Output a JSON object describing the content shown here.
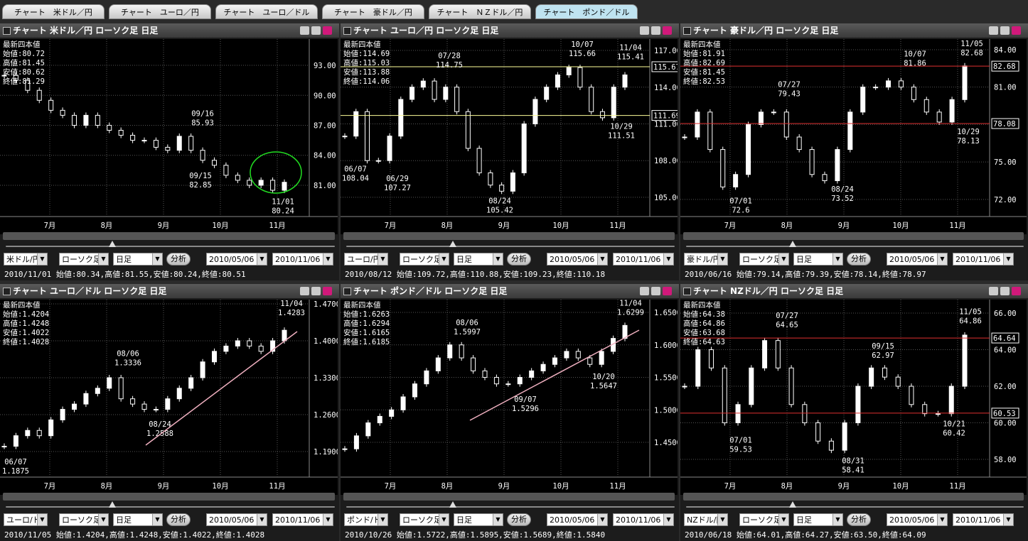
{
  "tabs": [
    "チャート　米ドル／円",
    "チャート　ユーロ／円",
    "チャート　ユーロ／ドル",
    "チャート　豪ドル／円",
    "チャート　ＮＺドル／円",
    "チャート　ポンド／ドル"
  ],
  "panels": [
    {
      "title": "チャート 米ドル／円 ローソク足 日足",
      "info_heading": "最新四本値",
      "info": [
        "始値:80.72",
        "高値:81.45",
        "安値:80.62",
        "終値:81.29"
      ],
      "ylim": [
        77.87,
        95.63
      ],
      "yticks": [
        {
          "value": 93,
          "label": "93.00"
        },
        {
          "value": 90,
          "label": "90.00"
        },
        {
          "value": 87,
          "label": "87.00"
        },
        {
          "value": 84,
          "label": "84.00"
        },
        {
          "value": 81,
          "label": "81.00"
        }
      ],
      "hlines": [],
      "hline_color": "#ffff99",
      "annotations": [
        {
          "date": "09/16",
          "value": 85.93
        },
        {
          "date": "09/15",
          "value": 82.85
        },
        {
          "date": "11/01",
          "value": 80.24
        }
      ],
      "months": [
        "7月",
        "8月",
        "9月",
        "10月",
        "11月"
      ],
      "prices": [
        92.0,
        91.5,
        90.5,
        89.5,
        88.5,
        88.0,
        87.0,
        88.0,
        87.0,
        86.5,
        86.0,
        85.5,
        85.5,
        84.8,
        84.5,
        85.9,
        84.5,
        83.5,
        83.0,
        82.0,
        81.5,
        81.0,
        81.5,
        80.5,
        81.3
      ],
      "controls": {
        "pair": "米ドル/円",
        "type": "ローソク足",
        "period": "日足",
        "button": "分析",
        "from": "2010/05/06",
        "to": "2010/11/06"
      },
      "status": "2010/11/01 始値:80.34,高値:81.55,安値:80.24,終値:80.51"
    },
    {
      "title": "チャート ユーロ／円 ローソク足 日足",
      "info_heading": "最新四本値",
      "info": [
        "始値:114.69",
        "高値:115.03",
        "安値:113.88",
        "終値:114.06"
      ],
      "ylim": [
        103.43,
        117.93
      ],
      "yticks": [
        {
          "value": 117,
          "label": "117.00"
        },
        {
          "value": 114,
          "label": "114.00"
        },
        {
          "value": 111,
          "label": "111.00"
        },
        {
          "value": 108,
          "label": "108.00"
        },
        {
          "value": 105,
          "label": "105.00"
        }
      ],
      "hlines": [
        115.67,
        111.69
      ],
      "hline_color": "#ffff99",
      "annotations": [
        {
          "date": "07/28",
          "value": 114.75
        },
        {
          "date": "10/07",
          "value": 115.66
        },
        {
          "date": "11/04",
          "value": 115.41
        },
        {
          "date": "06/07",
          "value": 108.04
        },
        {
          "date": "06/29",
          "value": 107.27
        },
        {
          "date": "08/24",
          "value": 105.42
        },
        {
          "date": "10/29",
          "value": 111.51
        }
      ],
      "months": [
        "7月",
        "8月",
        "9月",
        "10月",
        "11月"
      ],
      "prices": [
        110,
        112,
        108,
        108,
        110,
        113,
        114,
        114.5,
        113,
        114,
        112,
        109,
        107,
        106,
        105.5,
        107,
        111,
        113,
        114,
        115,
        115.6,
        114,
        112,
        111.5,
        114,
        115
      ],
      "controls": {
        "pair": "ユーロ/円",
        "type": "ローソク足",
        "period": "日足",
        "button": "分析",
        "from": "2010/05/06",
        "to": "2010/11/06"
      },
      "status": "2010/08/12 始値:109.72,高値:110.88,安値:109.23,終値:110.18"
    },
    {
      "title": "チャート 豪ドル／円 ローソク足 日足",
      "info_heading": "最新四本値",
      "info": [
        "始値:81.91",
        "高値:82.69",
        "安値:81.45",
        "終値:82.53"
      ],
      "ylim": [
        70.63,
        84.85
      ],
      "yticks": [
        {
          "value": 84,
          "label": "84.00"
        },
        {
          "value": 81,
          "label": "81.00"
        },
        {
          "value": 78,
          "label": "78.00"
        },
        {
          "value": 75,
          "label": "75.00"
        },
        {
          "value": 72,
          "label": "72.00"
        }
      ],
      "hlines": [
        82.68,
        78.08
      ],
      "hline_color": "#e03030",
      "annotations": [
        {
          "date": "07/27",
          "value": 79.43
        },
        {
          "date": "10/07",
          "value": 81.86
        },
        {
          "date": "11/05",
          "value": 82.68
        },
        {
          "date": "08/24",
          "value": 73.52
        },
        {
          "date": "07/01",
          "value": 72.6
        },
        {
          "date": "10/29",
          "value": 78.13
        }
      ],
      "months": [
        "7月",
        "8月",
        "9月",
        "10月",
        "11月"
      ],
      "prices": [
        77,
        79,
        76,
        73,
        74,
        78,
        79,
        79,
        77,
        76,
        74,
        73.5,
        76,
        79,
        81,
        81,
        81.5,
        81,
        80,
        79,
        78.2,
        80,
        82.7
      ],
      "controls": {
        "pair": "豪ドル/円",
        "type": "ローソク足",
        "period": "日足",
        "button": "分析",
        "from": "2010/05/06",
        "to": "2010/11/06"
      },
      "status": "2010/06/16 始値:79.14,高値:79.39,安値:78.14,終値:78.97"
    },
    {
      "title": "チャート ユーロ／ドル ローソク足 日足",
      "info_heading": "最新四本値",
      "info": [
        "始値:1.4204",
        "高値:1.4248",
        "安値:1.4022",
        "終値:1.4028"
      ],
      "ylim": [
        1.1415,
        1.4781
      ],
      "yticks": [
        {
          "value": 1.47,
          "label": "1.4700"
        },
        {
          "value": 1.4,
          "label": "1.4000"
        },
        {
          "value": 1.33,
          "label": "1.3300"
        },
        {
          "value": 1.26,
          "label": "1.2600"
        },
        {
          "value": 1.19,
          "label": "1.1900"
        }
      ],
      "hlines": [],
      "hline_color": "#ffff99",
      "annotations": [
        {
          "date": "11/04",
          "value": 1.4283
        },
        {
          "date": "08/06",
          "value": 1.3336
        },
        {
          "date": "08/24",
          "value": 1.2588
        },
        {
          "date": "06/07",
          "value": 1.1875
        }
      ],
      "months": [
        "7月",
        "8月",
        "9月",
        "10月",
        "11月"
      ],
      "prices": [
        1.2,
        1.22,
        1.23,
        1.22,
        1.25,
        1.27,
        1.28,
        1.3,
        1.31,
        1.33,
        1.29,
        1.28,
        1.27,
        1.27,
        1.29,
        1.31,
        1.33,
        1.36,
        1.38,
        1.39,
        1.4,
        1.39,
        1.38,
        1.4,
        1.42
      ],
      "controls": {
        "pair": "ユーロ/ドル",
        "type": "ローソク足",
        "period": "日足",
        "button": "分析",
        "from": "2010/05/06",
        "to": "2010/11/06"
      },
      "status": "2010/11/05 始値:1.4204,高値:1.4248,安値:1.4022,終値:1.4028"
    },
    {
      "title": "チャート ポンド／ドル ローソク足 日足",
      "info_heading": "最新四本値",
      "info": [
        "始値:1.6263",
        "高値:1.6294",
        "安値:1.6165",
        "終値:1.6185"
      ],
      "ylim": [
        1.3965,
        1.6697
      ],
      "yticks": [
        {
          "value": 1.65,
          "label": "1.6500"
        },
        {
          "value": 1.6,
          "label": "1.6000"
        },
        {
          "value": 1.55,
          "label": "1.5500"
        },
        {
          "value": 1.5,
          "label": "1.5000"
        },
        {
          "value": 1.45,
          "label": "1.4500"
        }
      ],
      "hlines": [],
      "hline_color": "#ffff99",
      "annotations": [
        {
          "date": "08/06",
          "value": 1.5997
        },
        {
          "date": "11/04",
          "value": 1.6299
        },
        {
          "date": "10/20",
          "value": 1.5647
        },
        {
          "date": "09/07",
          "value": 1.5296
        }
      ],
      "months": [
        "7月",
        "8月",
        "9月",
        "10月",
        "11月"
      ],
      "prices": [
        1.44,
        1.46,
        1.48,
        1.49,
        1.5,
        1.52,
        1.54,
        1.56,
        1.58,
        1.6,
        1.58,
        1.56,
        1.55,
        1.54,
        1.54,
        1.55,
        1.56,
        1.57,
        1.58,
        1.59,
        1.58,
        1.57,
        1.59,
        1.61,
        1.63
      ],
      "controls": {
        "pair": "ポンド/ドル",
        "type": "ローソク足",
        "period": "日足",
        "button": "分析",
        "from": "2010/05/06",
        "to": "2010/11/06"
      },
      "status": "2010/10/26 始値:1.5722,高値:1.5895,安値:1.5689,終値:1.5840"
    },
    {
      "title": "チャート NZドル／円 ローソク足 日足",
      "info_heading": "最新四本値",
      "info": [
        "始値:64.38",
        "高値:64.86",
        "安値:63.68",
        "終値:64.63"
      ],
      "ylim": [
        57.03,
        66.74
      ],
      "yticks": [
        {
          "value": 66,
          "label": "66.00"
        },
        {
          "value": 64,
          "label": "64.00"
        },
        {
          "value": 62,
          "label": "62.00"
        },
        {
          "value": 60,
          "label": "60.00"
        },
        {
          "value": 58,
          "label": "58.00"
        }
      ],
      "hlines": [
        64.64,
        60.53
      ],
      "hline_color": "#e03030",
      "annotations": [
        {
          "date": "07/27",
          "value": 64.65
        },
        {
          "date": "09/15",
          "value": 62.97
        },
        {
          "date": "11/05",
          "value": 64.86
        },
        {
          "date": "07/01",
          "value": 59.53
        },
        {
          "date": "08/31",
          "value": 58.41
        },
        {
          "date": "10/21",
          "value": 60.42
        }
      ],
      "months": [
        "7月",
        "8月",
        "9月",
        "10月",
        "11月"
      ],
      "prices": [
        62,
        64,
        63,
        60,
        61,
        63,
        64.5,
        63,
        61,
        60,
        59,
        58.5,
        60,
        62,
        63,
        62.5,
        62,
        61,
        60.5,
        60.5,
        62,
        64.8
      ],
      "controls": {
        "pair": "NZドル/円",
        "type": "ローソク足",
        "period": "日足",
        "button": "分析",
        "from": "2010/05/06",
        "to": "2010/11/06"
      },
      "status": "2010/06/18 始値:64.01,高値:64.27,安値:63.50,終値:64.09"
    }
  ]
}
